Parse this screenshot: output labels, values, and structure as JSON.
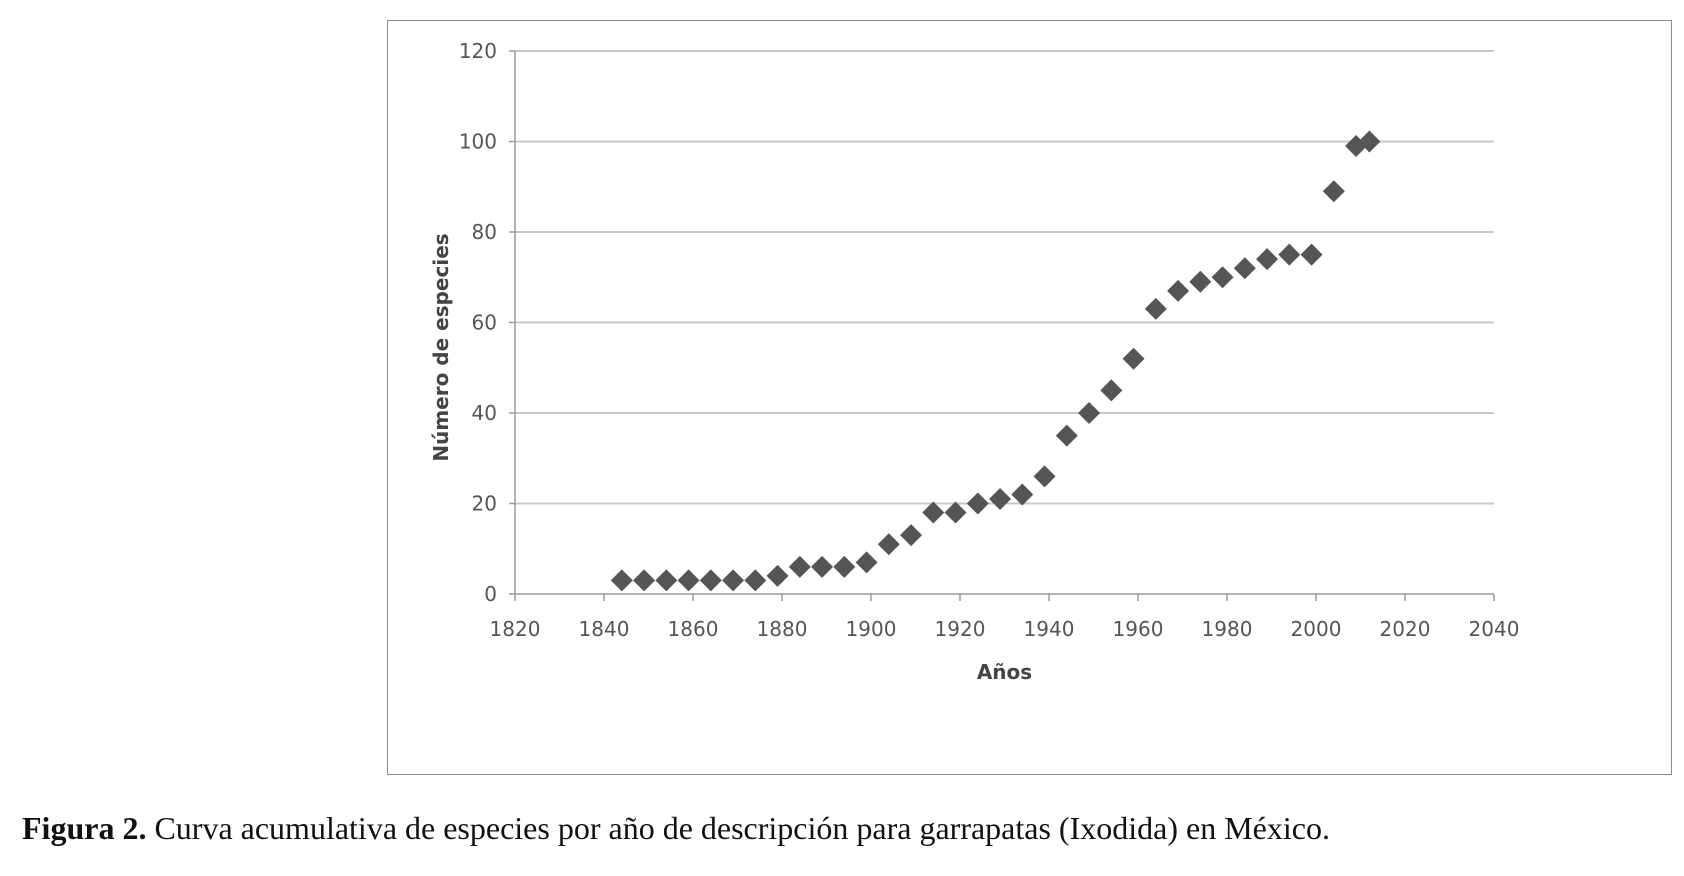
{
  "caption": {
    "label": "Figura 2.",
    "text": "Curva acumulativa de especies por año de descripción para garrapatas (Ixodida) en México."
  },
  "chart_data": {
    "type": "scatter",
    "xlabel": "Años",
    "ylabel": "Número de especies",
    "xlim": [
      1820,
      2040
    ],
    "ylim": [
      0,
      120
    ],
    "xticks": [
      1820,
      1840,
      1860,
      1880,
      1900,
      1920,
      1940,
      1960,
      1980,
      2000,
      2020,
      2040
    ],
    "yticks": [
      0,
      20,
      40,
      60,
      80,
      100,
      120
    ],
    "grid": "horizontal",
    "legend": "none",
    "marker": "diamond",
    "colors": {
      "marker": "#555555",
      "grid": "#c8c8c8",
      "axis": "#9a9a9a"
    },
    "x": [
      1844,
      1849,
      1854,
      1859,
      1864,
      1869,
      1874,
      1879,
      1884,
      1889,
      1894,
      1899,
      1904,
      1909,
      1914,
      1919,
      1924,
      1929,
      1934,
      1939,
      1944,
      1949,
      1954,
      1959,
      1964,
      1969,
      1974,
      1979,
      1984,
      1989,
      1994,
      1999,
      2004,
      2009,
      2012
    ],
    "y": [
      3,
      3,
      3,
      3,
      3,
      3,
      3,
      4,
      6,
      6,
      6,
      7,
      11,
      13,
      18,
      18,
      20,
      21,
      22,
      26,
      35,
      40,
      45,
      52,
      63,
      67,
      69,
      70,
      72,
      74,
      75,
      75,
      89,
      99,
      100
    ]
  }
}
